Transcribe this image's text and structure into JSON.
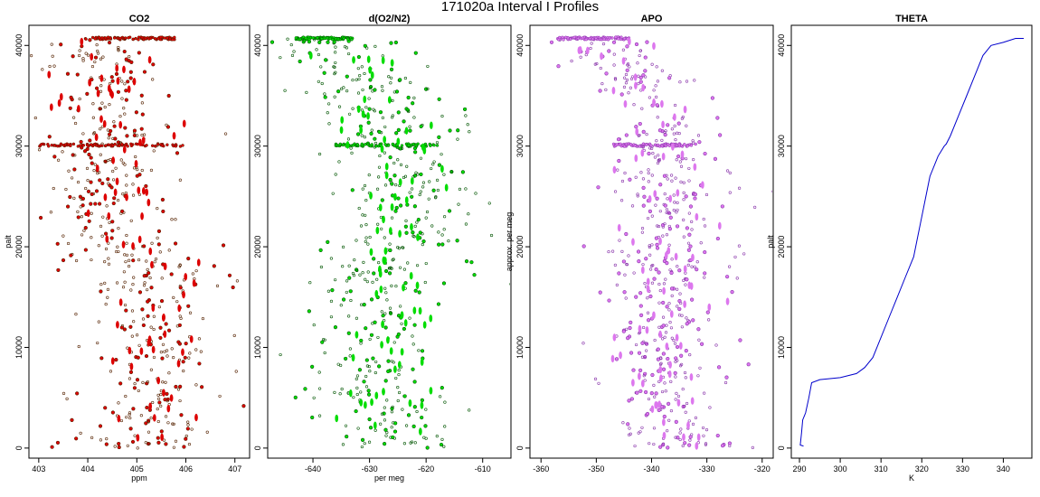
{
  "figure": {
    "title": "171020a   Interval I Profiles"
  },
  "chart_data": [
    {
      "type": "scatter",
      "title": "CO2",
      "xlabel": "ppm",
      "ylabel": "palt",
      "xlim": [
        402.8,
        407.3
      ],
      "ylim": [
        -1000,
        42000
      ],
      "xticks": [
        "403",
        "404",
        "405",
        "406",
        "407"
      ],
      "yticks": [
        "0",
        "10000",
        "20000",
        "30000",
        "40000"
      ],
      "fill": "#dd0000",
      "outline": "#552200",
      "series": [
        {
          "profile": [
            [
              404.3,
              40700
            ],
            [
              404.2,
              39000
            ],
            [
              404.5,
              36000
            ],
            [
              404.2,
              34000
            ],
            [
              404.8,
              32000
            ],
            [
              404.7,
              30100
            ],
            [
              404.2,
              29000
            ],
            [
              404.6,
              27000
            ],
            [
              404.4,
              25000
            ],
            [
              404.4,
              23000
            ],
            [
              404.6,
              21000
            ],
            [
              405.0,
              19000
            ],
            [
              405.3,
              17000
            ],
            [
              405.4,
              15000
            ],
            [
              405.5,
              13000
            ],
            [
              405.4,
              12000
            ],
            [
              405.6,
              10000
            ],
            [
              405.7,
              8500
            ],
            [
              405.2,
              7000
            ],
            [
              405.4,
              5000
            ],
            [
              405.3,
              3000
            ],
            [
              405.2,
              1500
            ],
            [
              405.1,
              300
            ]
          ],
          "spread": 0.9,
          "dense_bands": [
            [
              40700,
              403.9,
              405.8
            ],
            [
              30100,
              403.0,
              406.0
            ]
          ],
          "ticks_values": [
            403,
            404,
            405,
            406,
            407
          ],
          "yticks_values": [
            0,
            10000,
            20000,
            30000,
            40000
          ]
        }
      ]
    },
    {
      "type": "scatter",
      "title": "d(O2/N2)",
      "xlabel": "per meg",
      "ylabel": "",
      "xlim": [
        -648,
        -605
      ],
      "ylim": [
        -1000,
        42000
      ],
      "xticks": [
        "-640",
        "-630",
        "-620",
        "-610"
      ],
      "yticks": [
        "0",
        "10000",
        "20000",
        "30000",
        "40000"
      ],
      "fill": "#00dd00",
      "outline": "#005500",
      "series": [
        {
          "profile": [
            [
              -638,
              40700
            ],
            [
              -636,
              39000
            ],
            [
              -632,
              37000
            ],
            [
              -628,
              34000
            ],
            [
              -627,
              32000
            ],
            [
              -627,
              30100
            ],
            [
              -625,
              28000
            ],
            [
              -624,
              26000
            ],
            [
              -623,
              24000
            ],
            [
              -624,
              22000
            ],
            [
              -626,
              20000
            ],
            [
              -627,
              18000
            ],
            [
              -628,
              16000
            ],
            [
              -629,
              14000
            ],
            [
              -628,
              12000
            ],
            [
              -628,
              10000
            ],
            [
              -630,
              8500
            ],
            [
              -629,
              7000
            ],
            [
              -628,
              5000
            ],
            [
              -627,
              3000
            ],
            [
              -625,
              1500
            ],
            [
              -624,
              300
            ]
          ],
          "spread": 8,
          "dense_bands": [
            [
              40700,
              -643,
              -633
            ],
            [
              30100,
              -636,
              -618
            ]
          ],
          "ticks_values": [
            -640,
            -630,
            -620,
            -610
          ],
          "yticks_values": [
            0,
            10000,
            20000,
            30000,
            40000
          ]
        }
      ]
    },
    {
      "type": "scatter",
      "title": "APO",
      "xlabel": "",
      "ylabel": "approx. per meg",
      "xlim": [
        -362,
        -318
      ],
      "ylim": [
        -1000,
        42000
      ],
      "xticks": [
        "-360",
        "-350",
        "-340",
        "-330",
        "-320"
      ],
      "yticks": [
        "0",
        "10000",
        "20000",
        "30000",
        "40000"
      ],
      "fill": "#dd77ee",
      "outline": "#8833aa",
      "series": [
        {
          "profile": [
            [
              -350,
              40700
            ],
            [
              -347,
              39000
            ],
            [
              -343,
              37000
            ],
            [
              -340,
              34000
            ],
            [
              -339,
              32000
            ],
            [
              -338,
              30100
            ],
            [
              -337,
              28000
            ],
            [
              -337,
              26000
            ],
            [
              -338,
              24000
            ],
            [
              -337,
              22000
            ],
            [
              -337,
              20000
            ],
            [
              -337,
              18000
            ],
            [
              -337,
              16000
            ],
            [
              -338,
              14000
            ],
            [
              -338,
              12000
            ],
            [
              -338,
              10000
            ],
            [
              -339,
              8500
            ],
            [
              -338,
              7000
            ],
            [
              -338,
              5000
            ],
            [
              -337,
              3000
            ],
            [
              -336,
              1500
            ],
            [
              -335,
              300
            ]
          ],
          "spread": 7,
          "dense_bands": [
            [
              40700,
              -357,
              -344
            ],
            [
              30100,
              -347,
              -332
            ]
          ],
          "ticks_values": [
            -360,
            -350,
            -340,
            -330,
            -320
          ],
          "yticks_values": [
            0,
            10000,
            20000,
            30000,
            40000
          ]
        }
      ]
    },
    {
      "type": "line",
      "title": "THETA",
      "xlabel": "K",
      "ylabel": "palt",
      "xlim": [
        288,
        347
      ],
      "ylim": [
        -1000,
        42000
      ],
      "xticks": [
        "290",
        "300",
        "310",
        "320",
        "330",
        "340"
      ],
      "yticks": [
        "0",
        "10000",
        "20000",
        "30000",
        "40000"
      ],
      "color": "#0000cc",
      "series": [
        {
          "points": [
            [
              291,
              200
            ],
            [
              290.2,
              300
            ],
            [
              290.5,
              1500
            ],
            [
              290.8,
              2800
            ],
            [
              291.5,
              3500
            ],
            [
              292.3,
              5000
            ],
            [
              293,
              6500
            ],
            [
              295,
              6800
            ],
            [
              300,
              7000
            ],
            [
              304,
              7400
            ],
            [
              306,
              8000
            ],
            [
              308,
              9000
            ],
            [
              310,
              11000
            ],
            [
              312,
              13000
            ],
            [
              314,
              15000
            ],
            [
              316,
              17000
            ],
            [
              318,
              19000
            ],
            [
              319,
              21000
            ],
            [
              320,
              23000
            ],
            [
              321,
              25000
            ],
            [
              322,
              27000
            ],
            [
              324,
              29000
            ],
            [
              325.5,
              30000
            ],
            [
              326,
              30200
            ],
            [
              327,
              31000
            ],
            [
              329,
              33000
            ],
            [
              331,
              35000
            ],
            [
              333,
              37000
            ],
            [
              335,
              39000
            ],
            [
              337,
              40000
            ],
            [
              340,
              40300
            ],
            [
              343,
              40700
            ],
            [
              345,
              40700
            ]
          ],
          "ticks_values": [
            290,
            300,
            310,
            320,
            330,
            340
          ],
          "yticks_values": [
            0,
            10000,
            20000,
            30000,
            40000
          ]
        }
      ]
    }
  ]
}
